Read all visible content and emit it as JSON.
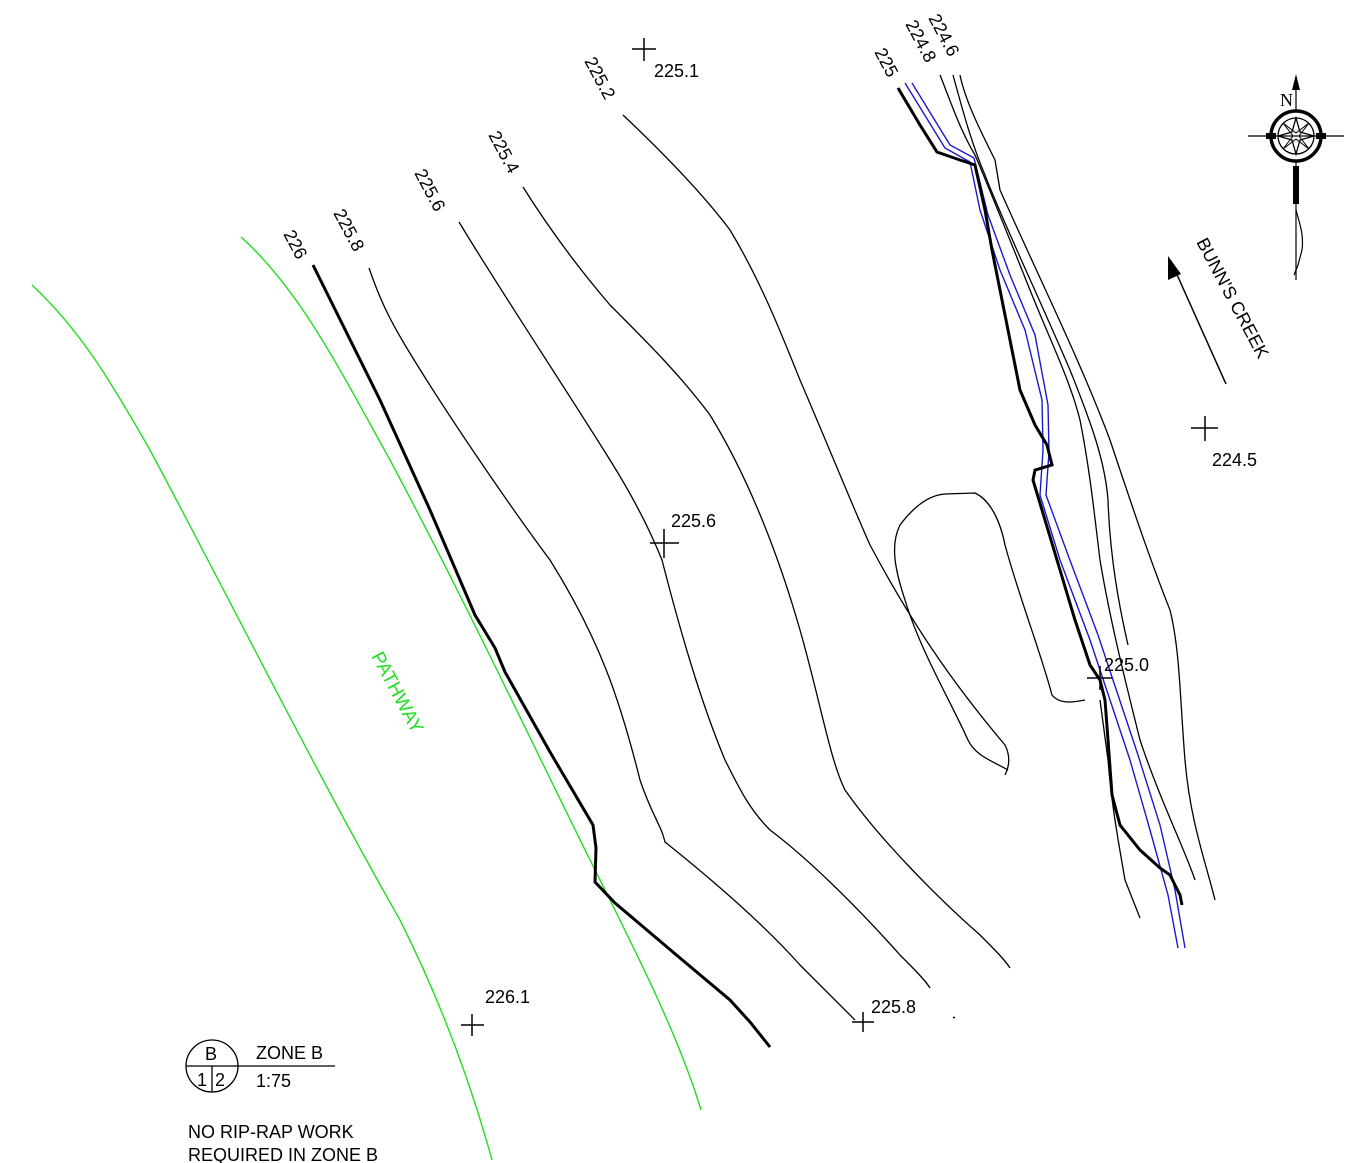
{
  "contour_labels": {
    "c226": "226",
    "c225_8": "225.8",
    "c225_6": "225.6",
    "c225_4": "225.4",
    "c225_2": "225.2",
    "c225": "225",
    "c224_8": "224.8",
    "c224_6": "224.6"
  },
  "spot_elevations": {
    "s225_1": "225.1",
    "s225_6": "225.6",
    "s224_5": "224.5",
    "s225_0": "225.0",
    "s226_1": "226.1",
    "s225_8": "225.8"
  },
  "pathway_label": "PATHWAY",
  "creek_label": "BUNN'S CREEK",
  "north_label": "N",
  "detail_marker": {
    "letter": "B",
    "left_num": "1",
    "right_num": "2",
    "title": "ZONE B",
    "scale": "1:75"
  },
  "notes": {
    "line1": "NO RIP-RAP WORK",
    "line2": "REQUIRED IN ZONE B"
  },
  "colors": {
    "pathway": "#22dd22",
    "water": "#1a1acc",
    "contour": "#000000"
  }
}
